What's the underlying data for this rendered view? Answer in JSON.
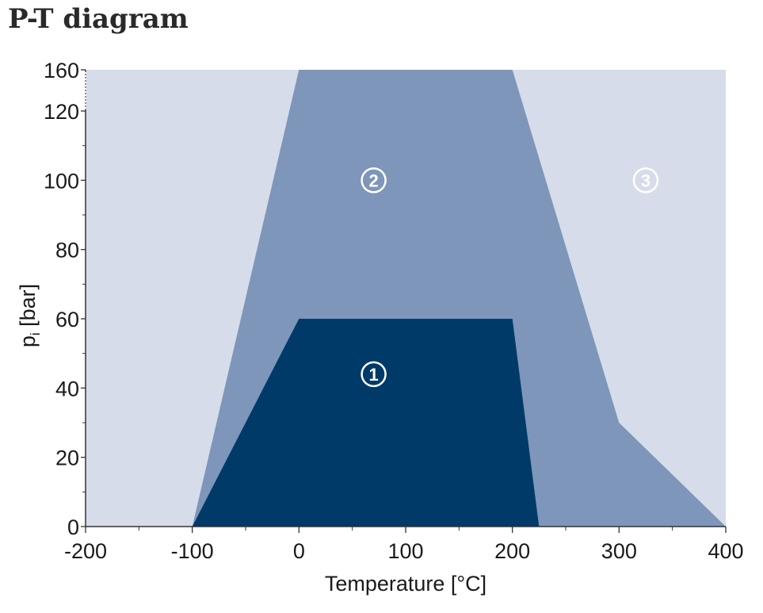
{
  "title": "P-T diagram",
  "colors": {
    "background_zone": "#d6dcea",
    "zone_2": "#7d96b9",
    "zone_1": "#003a69",
    "axis": "#333333",
    "marker_light": "#ffffff"
  },
  "chart_data": {
    "type": "area",
    "title": "P-T diagram",
    "xlabel": "Temperature [°C]",
    "ylabel": "p",
    "ylabel_subscript": "i",
    "ylabel_unit": "[bar]",
    "xlim": [
      -200,
      400
    ],
    "ylim": [
      0,
      160
    ],
    "x_ticks": [
      "-200",
      "-100",
      "0",
      "100",
      "200",
      "300",
      "400"
    ],
    "y_ticks": [
      "0",
      "20",
      "40",
      "60",
      "80",
      "100",
      "120",
      "160"
    ],
    "grid": false,
    "y_axis_break": true,
    "regions": [
      {
        "name": "3",
        "label": "③",
        "polygon": [
          [
            -200,
            0
          ],
          [
            400,
            0
          ],
          [
            400,
            160
          ],
          [
            -200,
            160
          ]
        ],
        "label_at": [
          325,
          100
        ]
      },
      {
        "name": "2",
        "label": "②",
        "polygon": [
          [
            -100,
            0
          ],
          [
            400,
            0
          ],
          [
            300,
            30
          ],
          [
            200,
            160
          ],
          [
            0,
            160
          ]
        ],
        "label_at": [
          70,
          100
        ]
      },
      {
        "name": "1",
        "label": "①",
        "polygon": [
          [
            -100,
            0
          ],
          [
            225,
            0
          ],
          [
            200,
            60
          ],
          [
            0,
            60
          ]
        ],
        "label_at": [
          70,
          44
        ]
      }
    ]
  }
}
